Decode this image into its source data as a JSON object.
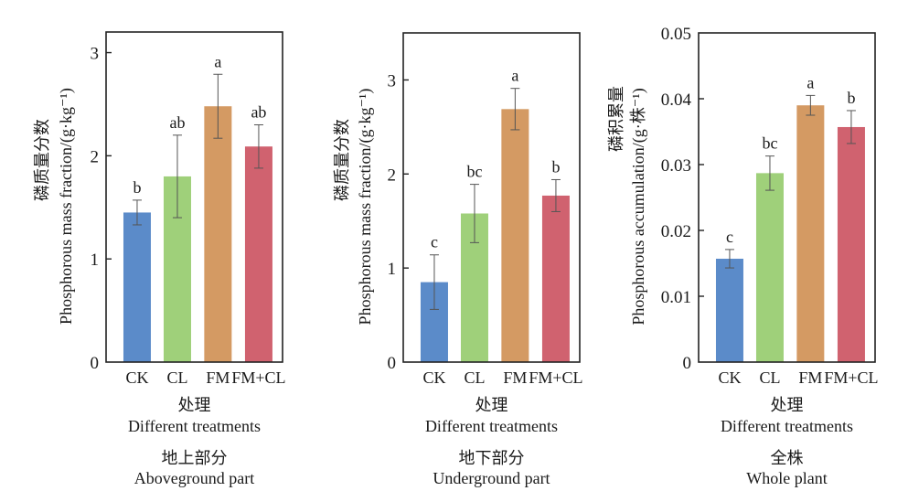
{
  "chart_data": [
    {
      "type": "bar",
      "panel": "aboveground",
      "categories": [
        "CK",
        "CL",
        "FM",
        "FM+CL"
      ],
      "values": [
        1.45,
        1.8,
        2.48,
        2.09
      ],
      "errors": [
        0.12,
        0.4,
        0.31,
        0.21
      ],
      "significance": [
        "b",
        "ab",
        "a",
        "ab"
      ],
      "colors": [
        "#5b8bc9",
        "#9fd07a",
        "#d49a63",
        "#d0626f"
      ],
      "ylabel_cn": "磷质量分数",
      "ylabel_en": "Phosphorous mass fraction/(g·kg⁻¹)",
      "xlabel_cn": "处理",
      "xlabel_en": "Different treatments",
      "caption_cn": "地上部分",
      "caption_en": "Aboveground part",
      "ylim": [
        0,
        3.2
      ],
      "yticks": [
        0,
        1,
        2,
        3
      ],
      "ytick_labels": [
        "0",
        "1",
        "2",
        "3"
      ],
      "grid": false
    },
    {
      "type": "bar",
      "panel": "underground",
      "categories": [
        "CK",
        "CL",
        "FM",
        "FM+CL"
      ],
      "values": [
        0.85,
        1.58,
        2.69,
        1.77
      ],
      "errors": [
        0.29,
        0.31,
        0.22,
        0.17
      ],
      "significance": [
        "c",
        "bc",
        "a",
        "b"
      ],
      "colors": [
        "#5b8bc9",
        "#9fd07a",
        "#d49a63",
        "#d0626f"
      ],
      "ylabel_cn": "磷质量分数",
      "ylabel_en": "Phosphorous mass fraction/(g·kg⁻¹)",
      "xlabel_cn": "处理",
      "xlabel_en": "Different treatments",
      "caption_cn": "地下部分",
      "caption_en": "Underground part",
      "ylim": [
        0,
        3.5
      ],
      "yticks": [
        0,
        1,
        2,
        3
      ],
      "ytick_labels": [
        "0",
        "1",
        "2",
        "3"
      ],
      "grid": false
    },
    {
      "type": "bar",
      "panel": "whole",
      "categories": [
        "CK",
        "CL",
        "FM",
        "FM+CL"
      ],
      "values": [
        0.0157,
        0.0287,
        0.039,
        0.0357
      ],
      "errors": [
        0.0014,
        0.0026,
        0.0015,
        0.0025
      ],
      "significance": [
        "c",
        "bc",
        "a",
        "b"
      ],
      "colors": [
        "#5b8bc9",
        "#9fd07a",
        "#d49a63",
        "#d0626f"
      ],
      "ylabel_cn": "磷积累量",
      "ylabel_en": "Phosphorous accumulation/(g·株⁻¹)",
      "xlabel_cn": "处理",
      "xlabel_en": "Different treatments",
      "caption_cn": "全株",
      "caption_en": "Whole plant",
      "ylim": [
        0,
        0.05
      ],
      "yticks": [
        0,
        0.01,
        0.02,
        0.03,
        0.04,
        0.05
      ],
      "ytick_labels": [
        "0",
        "0.01",
        "0.02",
        "0.03",
        "0.04",
        "0.05"
      ],
      "grid": false
    }
  ]
}
